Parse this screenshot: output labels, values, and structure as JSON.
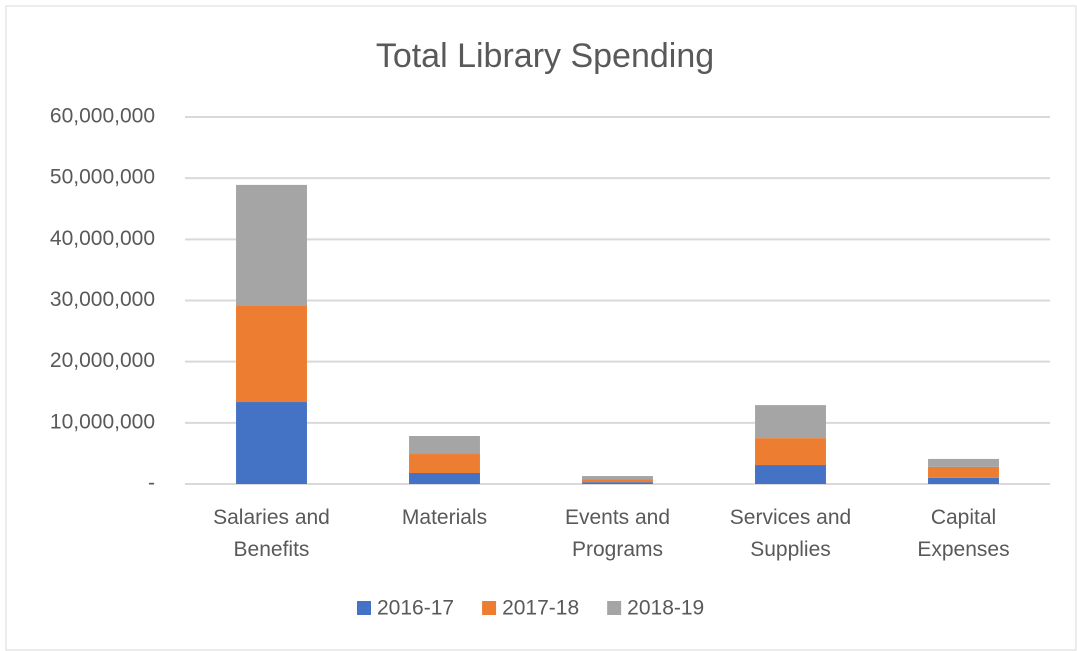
{
  "chart_data": {
    "type": "stacked_bar",
    "title": "Total Library Spending",
    "categories": [
      "Salaries and Benefits",
      "Materials",
      "Events and Programs",
      "Services and Supplies",
      "Capital Expenses"
    ],
    "series": [
      {
        "name": "2016-17",
        "color": "#4472c4",
        "values": [
          13400000,
          1800000,
          300000,
          3100000,
          1000000
        ]
      },
      {
        "name": "2017-18",
        "color": "#ed7d31",
        "values": [
          15700000,
          3100000,
          500000,
          4400000,
          1800000
        ]
      },
      {
        "name": "2018-19",
        "color": "#a5a5a5",
        "values": [
          19800000,
          2950000,
          500000,
          5400000,
          1300000
        ]
      }
    ],
    "ylim": [
      0,
      60000000
    ],
    "yticks": [
      {
        "value": 0,
        "label": "-"
      },
      {
        "value": 10000000,
        "label": "10,000,000"
      },
      {
        "value": 20000000,
        "label": "20,000,000"
      },
      {
        "value": 30000000,
        "label": "30,000,000"
      },
      {
        "value": 40000000,
        "label": "40,000,000"
      },
      {
        "value": 50000000,
        "label": "50,000,000"
      },
      {
        "value": 60000000,
        "label": "60,000,000"
      }
    ],
    "grid": true,
    "legend": "bottom"
  }
}
